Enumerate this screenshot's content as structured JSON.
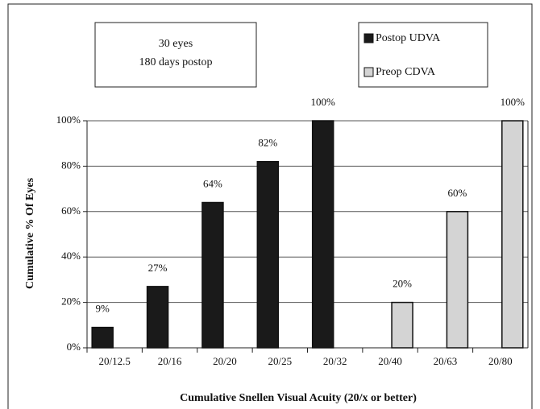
{
  "chart_data": {
    "type": "bar",
    "annotation": [
      "30 eyes",
      "180 days postop"
    ],
    "xlabel": "Cumulative Snellen Visual Acuity (20/x or better)",
    "ylabel": "Cumulative % Of Eyes",
    "categories": [
      "20/12.5",
      "20/16",
      "20/20",
      "20/25",
      "20/32",
      "20/40",
      "20/63",
      "20/80"
    ],
    "series": [
      {
        "name": "Postop UDVA",
        "color": "#1a1a1a",
        "values": [
          9,
          27,
          64,
          82,
          100,
          null,
          null,
          null
        ],
        "value_labels": [
          "9%",
          "27%",
          "64%",
          "82%",
          "100%",
          null,
          null,
          null
        ]
      },
      {
        "name": "Preop CDVA",
        "color": "#d4d4d4",
        "values": [
          null,
          null,
          null,
          null,
          null,
          20,
          60,
          100
        ],
        "value_labels": [
          null,
          null,
          null,
          null,
          null,
          "20%",
          "60%",
          "100%"
        ]
      }
    ],
    "ylim": [
      0,
      100
    ],
    "yticks": [
      {
        "value": 0,
        "label": "0%"
      },
      {
        "value": 20,
        "label": "20%"
      },
      {
        "value": 40,
        "label": "40%"
      },
      {
        "value": 60,
        "label": "60%"
      },
      {
        "value": 80,
        "label": "80%"
      },
      {
        "value": 100,
        "label": "100%"
      }
    ],
    "grid": true
  }
}
